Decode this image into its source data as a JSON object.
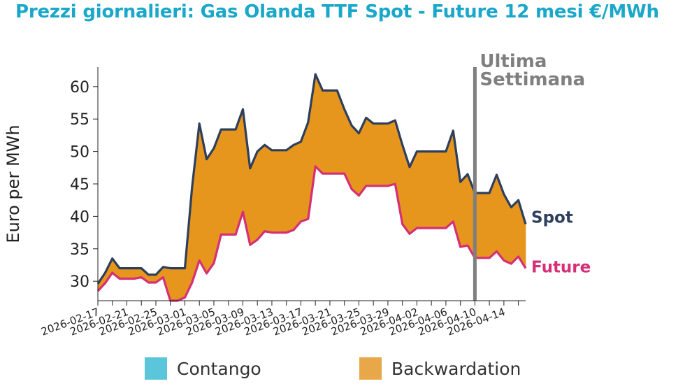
{
  "chart_data": {
    "type": "area",
    "title": "Prezzi giornalieri: Gas Olanda TTF Spot - Future 12 mesi €/MWh",
    "ylabel": "Euro per MWh",
    "xlabel": "",
    "ylim": [
      27,
      63
    ],
    "yticks": [
      30,
      35,
      40,
      45,
      50,
      55,
      60
    ],
    "xticks": [
      "2026-02-17",
      "2026-02-21",
      "2026-02-25",
      "2026-03-01",
      "2026-03-05",
      "2026-03-09",
      "2026-03-13",
      "2026-03-17",
      "2026-03-21",
      "2026-03-25",
      "2026-03-29",
      "2026-04-02",
      "2026-04-06",
      "2026-04-10",
      "2026-04-14"
    ],
    "x": [
      "2026-02-17",
      "2026-02-18",
      "2026-02-19",
      "2026-02-20",
      "2026-02-21",
      "2026-02-22",
      "2026-02-23",
      "2026-02-24",
      "2026-02-25",
      "2026-02-26",
      "2026-02-27",
      "2026-02-28",
      "2026-03-01",
      "2026-03-02",
      "2026-03-03",
      "2026-03-04",
      "2026-03-05",
      "2026-03-06",
      "2026-03-07",
      "2026-03-08",
      "2026-03-09",
      "2026-03-10",
      "2026-03-11",
      "2026-03-12",
      "2026-03-13",
      "2026-03-14",
      "2026-03-15",
      "2026-03-16",
      "2026-03-17",
      "2026-03-18",
      "2026-03-19",
      "2026-03-20",
      "2026-03-21",
      "2026-03-22",
      "2026-03-23",
      "2026-03-24",
      "2026-03-25",
      "2026-03-26",
      "2026-03-27",
      "2026-03-28",
      "2026-03-29",
      "2026-03-30",
      "2026-03-31",
      "2026-04-01",
      "2026-04-02",
      "2026-04-03",
      "2026-04-04",
      "2026-04-05",
      "2026-04-06",
      "2026-04-07",
      "2026-04-08",
      "2026-04-09",
      "2026-04-10",
      "2026-04-11",
      "2026-04-12",
      "2026-04-13",
      "2026-04-14",
      "2026-04-15",
      "2026-04-16",
      "2026-04-17"
    ],
    "series": [
      {
        "name": "Spot",
        "color": "#2e3f5c",
        "values": [
          29.6,
          31.3,
          33.5,
          32.0,
          32.0,
          32.0,
          32.0,
          31.0,
          31.0,
          32.2,
          32.0,
          32.0,
          32.0,
          44.5,
          54.3,
          48.8,
          50.5,
          53.4,
          53.4,
          53.4,
          56.5,
          47.4,
          50.0,
          51.0,
          50.2,
          50.2,
          50.2,
          51.0,
          51.5,
          54.5,
          61.9,
          59.4,
          59.4,
          59.4,
          56.5,
          54.0,
          52.8,
          55.2,
          54.3,
          54.3,
          54.3,
          54.8,
          51.0,
          47.6,
          50.0,
          50.0,
          50.0,
          50.0,
          50.0,
          53.2,
          45.3,
          46.5,
          43.6,
          43.6,
          43.6,
          46.4,
          43.4,
          41.4,
          42.5,
          38.8
        ]
      },
      {
        "name": "Future",
        "color": "#d62f77",
        "values": [
          28.5,
          29.7,
          31.3,
          30.4,
          30.4,
          30.4,
          30.6,
          29.8,
          29.8,
          30.6,
          26.6,
          26.6,
          27.5,
          29.8,
          33.2,
          31.2,
          32.8,
          37.2,
          37.2,
          37.2,
          40.7,
          35.6,
          36.4,
          37.7,
          37.5,
          37.5,
          37.5,
          37.9,
          39.2,
          39.6,
          47.7,
          46.6,
          46.6,
          46.6,
          46.6,
          44.2,
          43.2,
          44.7,
          44.7,
          44.7,
          44.7,
          45.0,
          38.8,
          37.3,
          38.2,
          38.2,
          38.2,
          38.2,
          38.2,
          39.2,
          35.3,
          35.5,
          33.6,
          33.6,
          33.6,
          34.6,
          33.2,
          32.7,
          33.8,
          32.0
        ]
      }
    ],
    "fill_colors": {
      "backwardation": "#e6961c",
      "contango": "#5bc5d9"
    },
    "legend": {
      "placement": "bottom",
      "items": [
        {
          "label": "Contango",
          "color": "#5bc5d9"
        },
        {
          "label": "Backwardation",
          "color": "#e8a84a"
        }
      ]
    },
    "marker": {
      "x": "2026-04-10",
      "label_lines": [
        "Ultima",
        "Settimana"
      ],
      "color": "#7f7f7f"
    },
    "grid": false
  }
}
